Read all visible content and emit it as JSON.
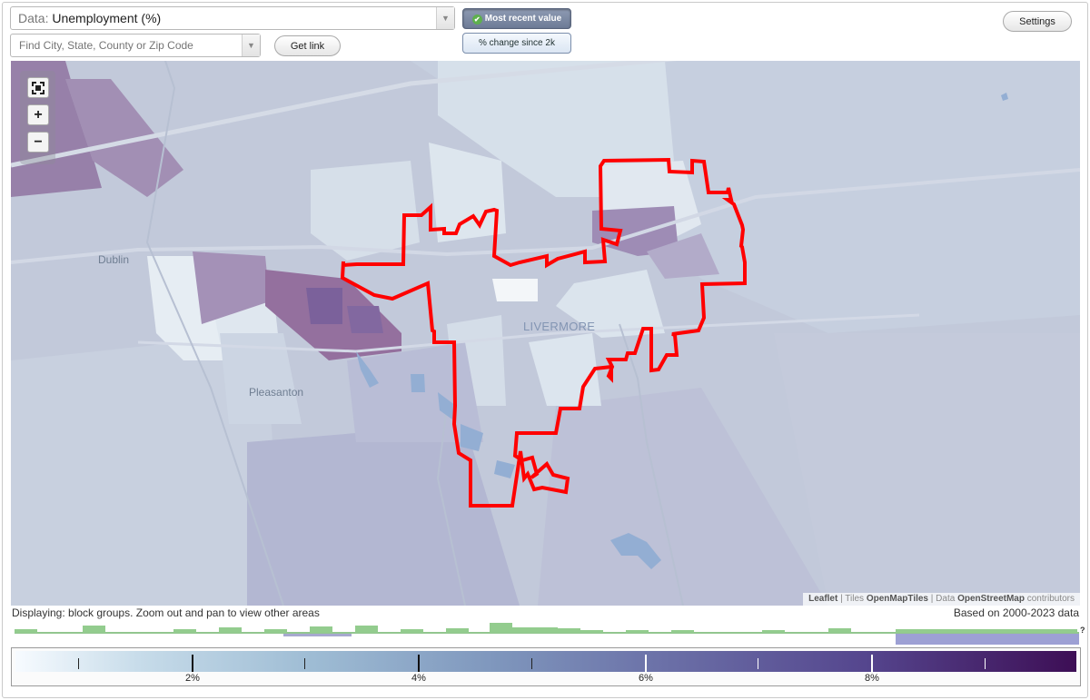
{
  "data_selector": {
    "label": "Data:",
    "value": "Unemployment (%)"
  },
  "search": {
    "placeholder": "Find City, State, County or Zip Code"
  },
  "buttons": {
    "get_link": "Get link",
    "settings": "Settings"
  },
  "view_toggle": {
    "active": "Most recent value",
    "inactive": "% change since 2k"
  },
  "map": {
    "labels": {
      "dublin": "Dublin",
      "pleasanton": "Pleasanton",
      "livermore": "LIVERMORE"
    },
    "highlight_color": "#ff0000",
    "attribution": {
      "leaflet": "Leaflet",
      "sep1": " | Tiles ",
      "tiles": "OpenMapTiles",
      "sep2": " | Data ",
      "osm": "OpenStreetMap",
      "tail": " contributors"
    },
    "zoom_controls": [
      "fullscreen-icon",
      "plus-icon",
      "minus-icon"
    ]
  },
  "status": {
    "displaying": "Displaying: block groups. Zoom out and pan to view other areas",
    "range": "Based on 2000-2023 data"
  },
  "help": "?",
  "legend": {
    "tick_labels": [
      "2%",
      "4%",
      "6%",
      "8%"
    ],
    "colors": {
      "low": "#f7fbff",
      "high": "#3d0e55"
    }
  }
}
